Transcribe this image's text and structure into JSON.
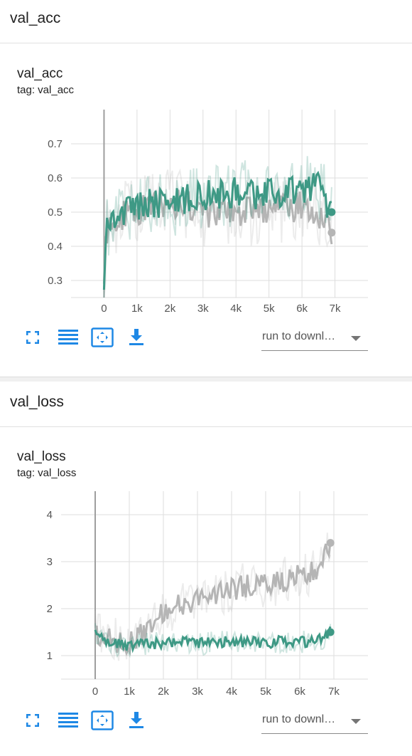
{
  "sections": [
    {
      "header": "val_acc",
      "card": {
        "title": "val_acc",
        "tag": "tag: val_acc",
        "run_select": "run to downl…"
      }
    },
    {
      "header": "val_loss",
      "card": {
        "title": "val_loss",
        "tag": "tag: val_loss",
        "run_select": "run to downl…"
      }
    }
  ],
  "toolbar_icons": [
    "fullscreen-icon",
    "toggle-y-axis-icon",
    "fit-domain-icon",
    "download-icon"
  ],
  "colors": {
    "teal": "#3e9985",
    "gray": "#b5b5b5",
    "grid": "#dddddd",
    "link_blue": "#1e88e5"
  },
  "chart_data": [
    {
      "type": "line",
      "title": "val_acc",
      "xlim": [
        -1000,
        8000
      ],
      "ylim": [
        0.25,
        0.8
      ],
      "x_ticks": [
        "0",
        "1k",
        "2k",
        "3k",
        "4k",
        "5k",
        "6k",
        "7k"
      ],
      "x_tick_values": [
        0,
        1000,
        2000,
        3000,
        4000,
        5000,
        6000,
        7000
      ],
      "y_ticks": [
        "0.3",
        "0.4",
        "0.5",
        "0.6",
        "0.7"
      ],
      "y_tick_values": [
        0.3,
        0.4,
        0.5,
        0.6,
        0.7
      ],
      "series": [
        {
          "color": "#b5b5b5",
          "x": [
            0,
            100,
            300,
            500,
            1000,
            1500,
            2000,
            2500,
            3000,
            3500,
            4000,
            4500,
            5000,
            5500,
            6000,
            6500,
            6900
          ],
          "y": [
            0.33,
            0.45,
            0.47,
            0.49,
            0.5,
            0.52,
            0.53,
            0.52,
            0.5,
            0.5,
            0.5,
            0.5,
            0.5,
            0.51,
            0.52,
            0.5,
            0.44
          ],
          "noise": 0.045,
          "raw_noise": 0.1
        },
        {
          "color": "#3e9985",
          "x": [
            0,
            100,
            300,
            500,
            1000,
            1500,
            2000,
            2500,
            3000,
            3500,
            4000,
            4500,
            5000,
            5500,
            6000,
            6500,
            6900
          ],
          "y": [
            0.3,
            0.46,
            0.48,
            0.5,
            0.52,
            0.53,
            0.52,
            0.54,
            0.55,
            0.55,
            0.56,
            0.55,
            0.56,
            0.56,
            0.57,
            0.58,
            0.5
          ],
          "noise": 0.045,
          "raw_noise": 0.1
        }
      ]
    },
    {
      "type": "line",
      "title": "val_loss",
      "xlim": [
        -1000,
        8000
      ],
      "ylim": [
        0.5,
        4.5
      ],
      "x_ticks": [
        "0",
        "1k",
        "2k",
        "3k",
        "4k",
        "5k",
        "6k",
        "7k"
      ],
      "x_tick_values": [
        0,
        1000,
        2000,
        3000,
        4000,
        5000,
        6000,
        7000
      ],
      "y_ticks": [
        "1",
        "2",
        "3",
        "4"
      ],
      "y_tick_values": [
        1,
        2,
        3,
        4
      ],
      "series": [
        {
          "color": "#b5b5b5",
          "x": [
            0,
            200,
            500,
            1000,
            1500,
            2000,
            2500,
            3000,
            3500,
            4000,
            4500,
            5000,
            5500,
            6000,
            6500,
            6900
          ],
          "y": [
            1.5,
            1.4,
            1.3,
            1.3,
            1.5,
            1.9,
            2.1,
            2.2,
            2.3,
            2.4,
            2.5,
            2.5,
            2.6,
            2.7,
            2.8,
            3.4
          ],
          "noise": 0.25,
          "raw_noise": 0.5
        },
        {
          "color": "#3e9985",
          "x": [
            0,
            200,
            500,
            1000,
            1500,
            2000,
            2500,
            3000,
            3500,
            4000,
            4500,
            5000,
            5500,
            6000,
            6500,
            6900
          ],
          "y": [
            1.5,
            1.35,
            1.25,
            1.2,
            1.25,
            1.25,
            1.3,
            1.25,
            1.28,
            1.3,
            1.3,
            1.28,
            1.3,
            1.3,
            1.3,
            1.5
          ],
          "noise": 0.12,
          "raw_noise": 0.25
        }
      ]
    }
  ]
}
